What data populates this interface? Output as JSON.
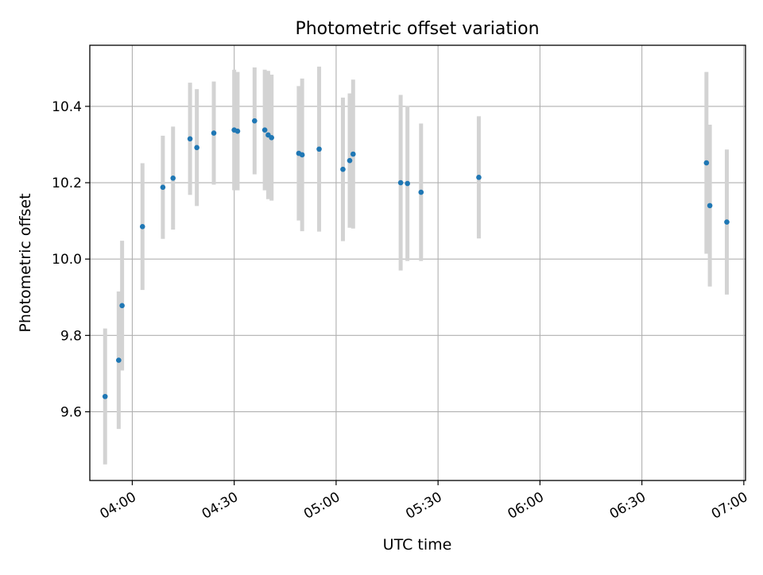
{
  "chart_data": {
    "type": "scatter",
    "title": "Photometric offset variation",
    "xlabel": "UTC time",
    "ylabel": "Photometric offset",
    "x_ticks": [
      "04:00",
      "04:30",
      "05:00",
      "05:30",
      "06:00",
      "06:30",
      "07:00"
    ],
    "y_ticks": [
      "9.6",
      "9.8",
      "10.0",
      "10.2",
      "10.4"
    ],
    "xlim": [
      "03:47:30",
      "07:00:30"
    ],
    "ylim": [
      9.42,
      10.56
    ],
    "grid": true,
    "point_color": "#1f77b4",
    "errorbar_color": "#d3d3d3",
    "x": [
      "03:52",
      "03:56",
      "03:57",
      "04:03",
      "04:09",
      "04:12",
      "04:17",
      "04:19",
      "04:24",
      "04:30",
      "04:31",
      "04:36",
      "04:39",
      "04:40",
      "04:41",
      "04:49",
      "04:50",
      "04:55",
      "05:02",
      "05:04",
      "05:05",
      "05:19",
      "05:21",
      "05:25",
      "05:42",
      "06:49",
      "06:50",
      "06:55"
    ],
    "y": [
      9.64,
      9.735,
      9.878,
      10.085,
      10.188,
      10.212,
      10.315,
      10.292,
      10.33,
      10.338,
      10.335,
      10.362,
      10.338,
      10.325,
      10.318,
      10.277,
      10.273,
      10.288,
      10.235,
      10.258,
      10.275,
      10.2,
      10.198,
      10.175,
      10.214,
      10.252,
      10.14,
      10.097
    ],
    "yerr": [
      0.178,
      0.18,
      0.17,
      0.166,
      0.135,
      0.135,
      0.147,
      0.153,
      0.135,
      0.158,
      0.155,
      0.14,
      0.158,
      0.168,
      0.165,
      0.176,
      0.2,
      0.216,
      0.188,
      0.176,
      0.195,
      0.23,
      0.203,
      0.18,
      0.16,
      0.238,
      0.212,
      0.19
    ]
  }
}
